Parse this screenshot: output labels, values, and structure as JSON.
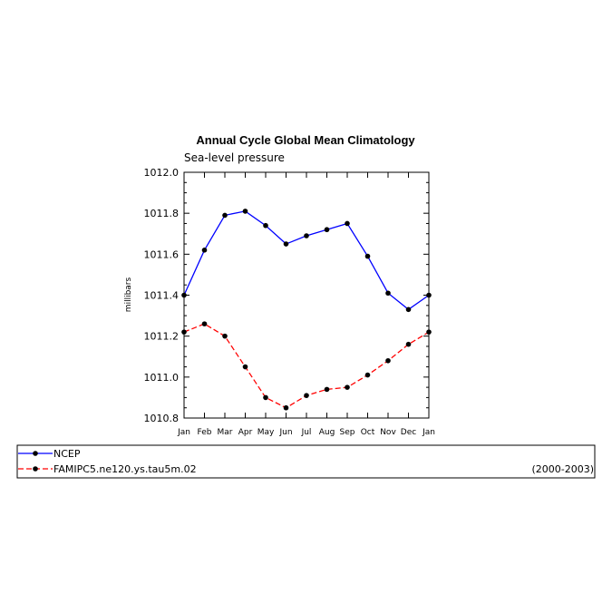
{
  "chart_data": {
    "type": "line",
    "title": "Annual Cycle Global Mean Climatology",
    "subtitle": "Sea-level pressure",
    "xlabel": "",
    "ylabel": "millibars",
    "categories": [
      "Jan",
      "Feb",
      "Mar",
      "Apr",
      "May",
      "Jun",
      "Jul",
      "Aug",
      "Sep",
      "Oct",
      "Nov",
      "Dec",
      "Jan"
    ],
    "ylim": [
      1010.8,
      1012.0
    ],
    "yticks": [
      "1010.8",
      "1011.0",
      "1011.2",
      "1011.4",
      "1011.6",
      "1011.8",
      "1012.0"
    ],
    "grid": false,
    "legend_position": "bottom",
    "series": [
      {
        "name": "NCEP",
        "color": "#0000ff",
        "style": "solid",
        "values": [
          1011.4,
          1011.62,
          1011.79,
          1011.81,
          1011.74,
          1011.65,
          1011.69,
          1011.72,
          1011.75,
          1011.59,
          1011.41,
          1011.33,
          1011.4
        ]
      },
      {
        "name": "FAMIPC5.ne120.ys.tau5m.02",
        "color": "#ff0000",
        "style": "dashed",
        "values": [
          1011.22,
          1011.26,
          1011.2,
          1011.05,
          1010.9,
          1010.85,
          1010.91,
          1010.94,
          1010.95,
          1011.01,
          1011.08,
          1011.16,
          1011.22
        ]
      }
    ],
    "annotation": "(2000-2003)"
  }
}
